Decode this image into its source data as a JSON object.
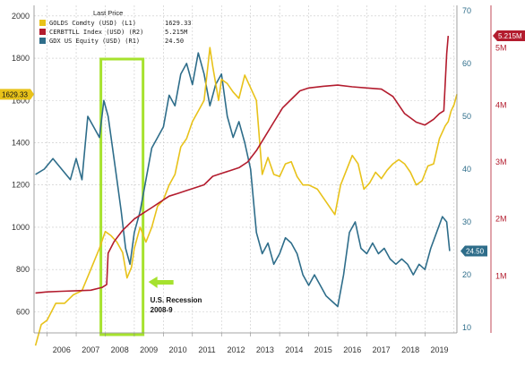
{
  "chart_data": {
    "type": "line",
    "legend": {
      "header": "Last Price",
      "placement": "top-left"
    },
    "series": [
      {
        "name": "GOLDS Comdty (USD) (L1)",
        "last_value": "1629.33",
        "axis": "left",
        "color": "#e8c21a",
        "x": [
          2005.6,
          2005.8,
          2006.0,
          2006.3,
          2006.6,
          2006.9,
          2007.2,
          2007.5,
          2007.8,
          2008.0,
          2008.2,
          2008.4,
          2008.6,
          2008.75,
          2008.9,
          2009.0,
          2009.2,
          2009.4,
          2009.6,
          2009.8,
          2010.0,
          2010.2,
          2010.4,
          2010.6,
          2010.8,
          2011.0,
          2011.2,
          2011.4,
          2011.6,
          2011.7,
          2011.9,
          2012.0,
          2012.2,
          2012.4,
          2012.6,
          2012.8,
          2013.0,
          2013.2,
          2013.4,
          2013.6,
          2013.8,
          2014.0,
          2014.2,
          2014.4,
          2014.6,
          2014.8,
          2015.0,
          2015.3,
          2015.6,
          2015.9,
          2016.1,
          2016.3,
          2016.5,
          2016.7,
          2016.9,
          2017.1,
          2017.3,
          2017.5,
          2017.7,
          2017.9,
          2018.1,
          2018.3,
          2018.5,
          2018.7,
          2018.9,
          2019.1,
          2019.3,
          2019.5,
          2019.7,
          2019.8,
          2019.9,
          2020.0,
          2020.1
        ],
        "y": [
          440,
          540,
          560,
          640,
          640,
          680,
          700,
          800,
          900,
          980,
          960,
          930,
          880,
          760,
          810,
          900,
          1000,
          930,
          1000,
          1100,
          1130,
          1200,
          1250,
          1380,
          1420,
          1500,
          1550,
          1600,
          1850,
          1760,
          1600,
          1700,
          1680,
          1640,
          1610,
          1720,
          1660,
          1600,
          1250,
          1330,
          1250,
          1240,
          1300,
          1310,
          1240,
          1200,
          1200,
          1180,
          1120,
          1060,
          1200,
          1270,
          1340,
          1300,
          1180,
          1210,
          1260,
          1230,
          1270,
          1300,
          1320,
          1300,
          1260,
          1200,
          1220,
          1290,
          1300,
          1420,
          1480,
          1500,
          1550,
          1580,
          1629
        ]
      },
      {
        "name": "CERBTTLL Index (USD) (R2)",
        "last_value": "5.215M",
        "axis": "right-outer",
        "color": "#b31c2e",
        "x": [
          2005.6,
          2006.0,
          2006.5,
          2007.0,
          2007.5,
          2007.9,
          2008.05,
          2008.1,
          2008.3,
          2008.6,
          2008.8,
          2009.0,
          2009.3,
          2009.6,
          2009.9,
          2010.2,
          2010.5,
          2010.8,
          2011.1,
          2011.4,
          2011.7,
          2012.0,
          2012.3,
          2012.6,
          2012.9,
          2013.2,
          2013.5,
          2013.8,
          2014.1,
          2014.4,
          2014.7,
          2015.0,
          2015.5,
          2016.0,
          2016.5,
          2017.0,
          2017.5,
          2017.9,
          2018.3,
          2018.7,
          2019.0,
          2019.3,
          2019.5,
          2019.65,
          2019.7,
          2019.75,
          2019.8
        ],
        "y": [
          0.7,
          0.72,
          0.73,
          0.74,
          0.75,
          0.8,
          0.85,
          1.4,
          1.6,
          1.8,
          1.9,
          2.0,
          2.1,
          2.2,
          2.3,
          2.4,
          2.45,
          2.5,
          2.55,
          2.6,
          2.75,
          2.8,
          2.85,
          2.9,
          3.0,
          3.2,
          3.45,
          3.7,
          3.95,
          4.1,
          4.25,
          4.3,
          4.33,
          4.35,
          4.32,
          4.3,
          4.28,
          4.15,
          3.85,
          3.7,
          3.65,
          3.75,
          3.85,
          3.9,
          4.4,
          4.9,
          5.215
        ]
      },
      {
        "name": "GDX US Equity (USD) (R1)",
        "last_value": "24.50",
        "axis": "right-inner",
        "color": "#2e6d8a",
        "x": [
          2005.6,
          2005.9,
          2006.2,
          2006.5,
          2006.8,
          2007.0,
          2007.2,
          2007.4,
          2007.6,
          2007.8,
          2007.95,
          2008.1,
          2008.2,
          2008.4,
          2008.55,
          2008.7,
          2008.85,
          2009.0,
          2009.2,
          2009.4,
          2009.6,
          2009.8,
          2010.0,
          2010.2,
          2010.4,
          2010.6,
          2010.8,
          2011.0,
          2011.2,
          2011.4,
          2011.6,
          2011.8,
          2012.0,
          2012.2,
          2012.4,
          2012.6,
          2012.8,
          2013.0,
          2013.2,
          2013.4,
          2013.6,
          2013.8,
          2014.0,
          2014.2,
          2014.4,
          2014.6,
          2014.8,
          2015.0,
          2015.2,
          2015.4,
          2015.6,
          2015.8,
          2016.0,
          2016.2,
          2016.4,
          2016.6,
          2016.8,
          2017.0,
          2017.2,
          2017.4,
          2017.6,
          2017.8,
          2018.0,
          2018.2,
          2018.4,
          2018.6,
          2018.8,
          2019.0,
          2019.2,
          2019.4,
          2019.6,
          2019.75,
          2019.85
        ],
        "y": [
          39,
          40,
          42,
          40,
          38,
          42,
          38,
          50,
          48,
          46,
          53,
          50,
          46,
          38,
          32,
          25,
          22,
          28,
          32,
          38,
          44,
          46,
          48,
          54,
          52,
          58,
          60,
          56,
          62,
          58,
          52,
          56,
          58,
          50,
          46,
          49,
          45,
          40,
          28,
          24,
          26,
          22,
          24,
          27,
          26,
          24,
          20,
          18,
          20,
          18,
          16,
          15,
          14,
          20,
          28,
          30,
          25,
          24,
          26,
          24,
          25,
          23,
          22,
          23,
          22,
          20,
          22,
          21,
          25,
          28,
          31,
          30,
          24.5
        ]
      }
    ],
    "x_ticks": [
      "2006",
      "2007",
      "2008",
      "2009",
      "2010",
      "2011",
      "2012",
      "2013",
      "2014",
      "2015",
      "2016",
      "2017",
      "2018",
      "2019"
    ],
    "y_left_ticks": [
      600,
      800,
      1000,
      1200,
      1400,
      1600,
      1800,
      2000
    ],
    "y_left_lim": [
      500,
      2050
    ],
    "y_right_inner_ticks": [
      10,
      20,
      30,
      40,
      50,
      60,
      70
    ],
    "y_right_inner_lim": [
      9,
      71
    ],
    "y_right_outer_ticks": [
      "1M",
      "2M",
      "3M",
      "4M",
      "5M"
    ],
    "y_right_outer_values": [
      1,
      2,
      3,
      4,
      5
    ],
    "y_right_outer_lim": [
      0.0,
      5.75
    ],
    "grid": true,
    "annotation": {
      "text_line1": "U.S. Recession",
      "text_line2": "2008-9",
      "box_x_range": [
        2007.85,
        2009.3
      ],
      "color": "#a6e22e"
    },
    "last_value_tags": {
      "gold": "1629.33",
      "gdx": "24.50",
      "cerb": "5.215M"
    }
  }
}
